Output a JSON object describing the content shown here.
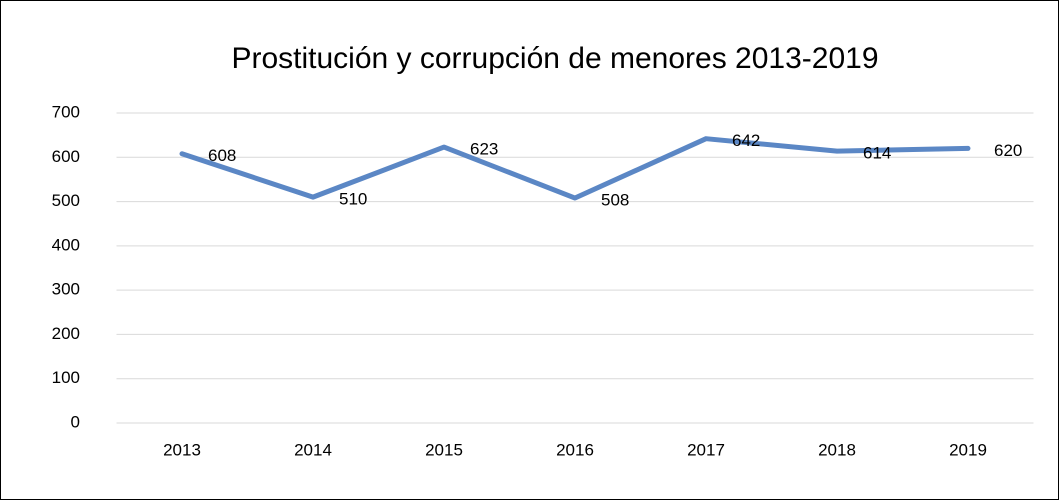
{
  "chart_data": {
    "type": "line",
    "title": "Prostitución y corrupción de menores 2013-2019",
    "categories": [
      "2013",
      "2014",
      "2015",
      "2016",
      "2017",
      "2018",
      "2019"
    ],
    "series": [
      {
        "name": "Prostitución y corrupción de menores",
        "color": "#5b87c5",
        "values": [
          608,
          510,
          623,
          508,
          642,
          614,
          620
        ]
      }
    ],
    "ylim": [
      0,
      700
    ],
    "yticks": [
      0,
      100,
      200,
      300,
      400,
      500,
      600,
      700
    ],
    "grid": true
  }
}
